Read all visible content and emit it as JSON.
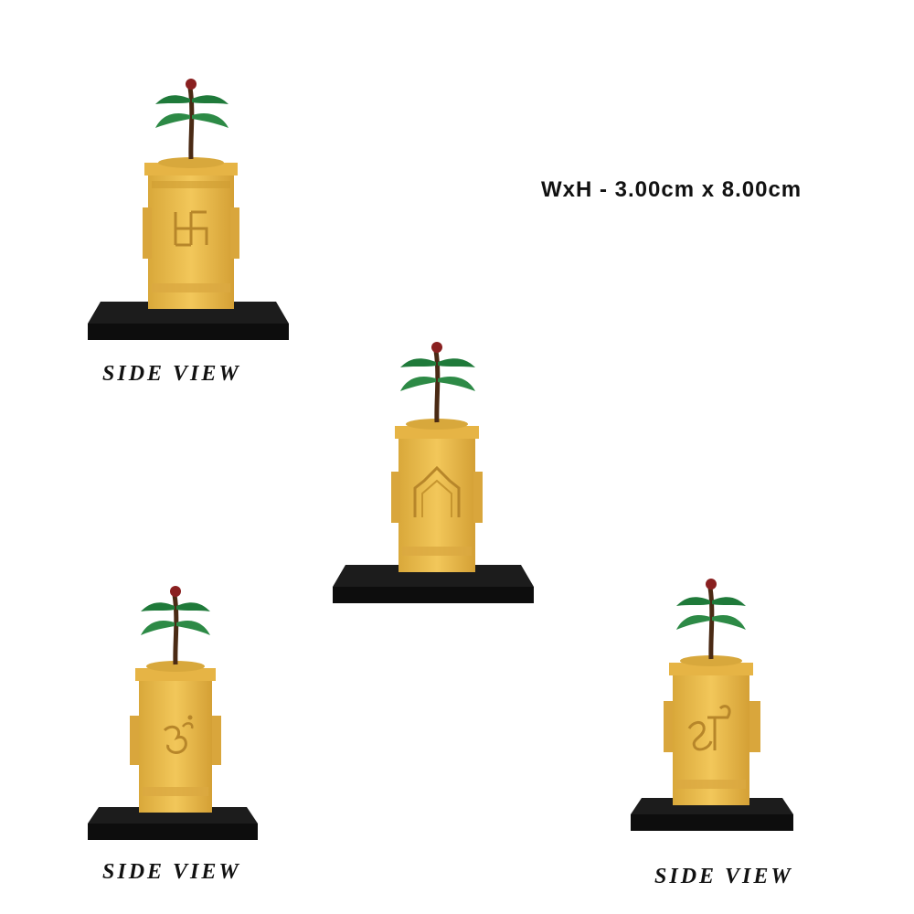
{
  "dimensions": "WxH - 3.00cm x 8.00cm",
  "captions": [
    "SIDE VIEW",
    "SIDE VIEW",
    "SIDE VIEW"
  ],
  "figures": [
    {
      "view": "side",
      "symbol": "swastika"
    },
    {
      "view": "front",
      "symbol": "temple-arch"
    },
    {
      "view": "side",
      "symbol": "om"
    },
    {
      "view": "side",
      "symbol": "shree"
    }
  ],
  "colors": {
    "gold": "#e9b849",
    "gold_dark": "#c99a2e",
    "base": "#121212",
    "leaf": "#1f7a3a",
    "trunk": "#4a2a14",
    "bud": "#8a2020"
  }
}
